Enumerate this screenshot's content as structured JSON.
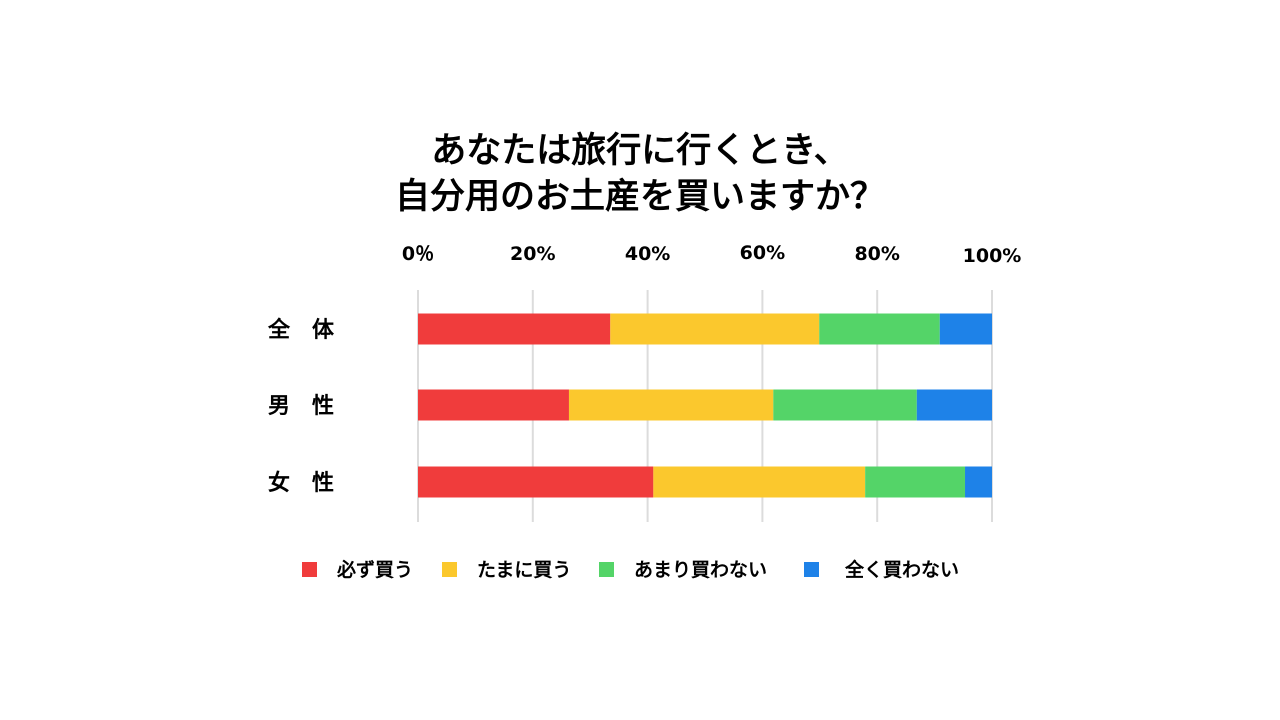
{
  "title_line1": "あなたは旅行に行くとき、",
  "title_line2": "自分用のお土産を買いますか？",
  "chart_data": {
    "type": "bar",
    "orientation": "horizontal",
    "stacked": true,
    "categories": [
      "全　体",
      "男　性",
      "女　性"
    ],
    "x_ticks": [
      "0％",
      "20%",
      "40%",
      "60%",
      "80%",
      "100%"
    ],
    "xlim": [
      0,
      100
    ],
    "grid": true,
    "legend_position": "bottom",
    "series": [
      {
        "name": "必ず買う",
        "color": "#f03c3c",
        "values": [
          33.5,
          26.3,
          41.0
        ]
      },
      {
        "name": "たまに買う",
        "color": "#fbc82d",
        "values": [
          36.4,
          35.6,
          36.9
        ]
      },
      {
        "name": "あまり買わない",
        "color": "#54d468",
        "values": [
          21.0,
          25.0,
          17.4
        ]
      },
      {
        "name": "全く買わない",
        "color": "#1e82e8",
        "values": [
          9.1,
          13.1,
          4.7
        ]
      }
    ]
  }
}
